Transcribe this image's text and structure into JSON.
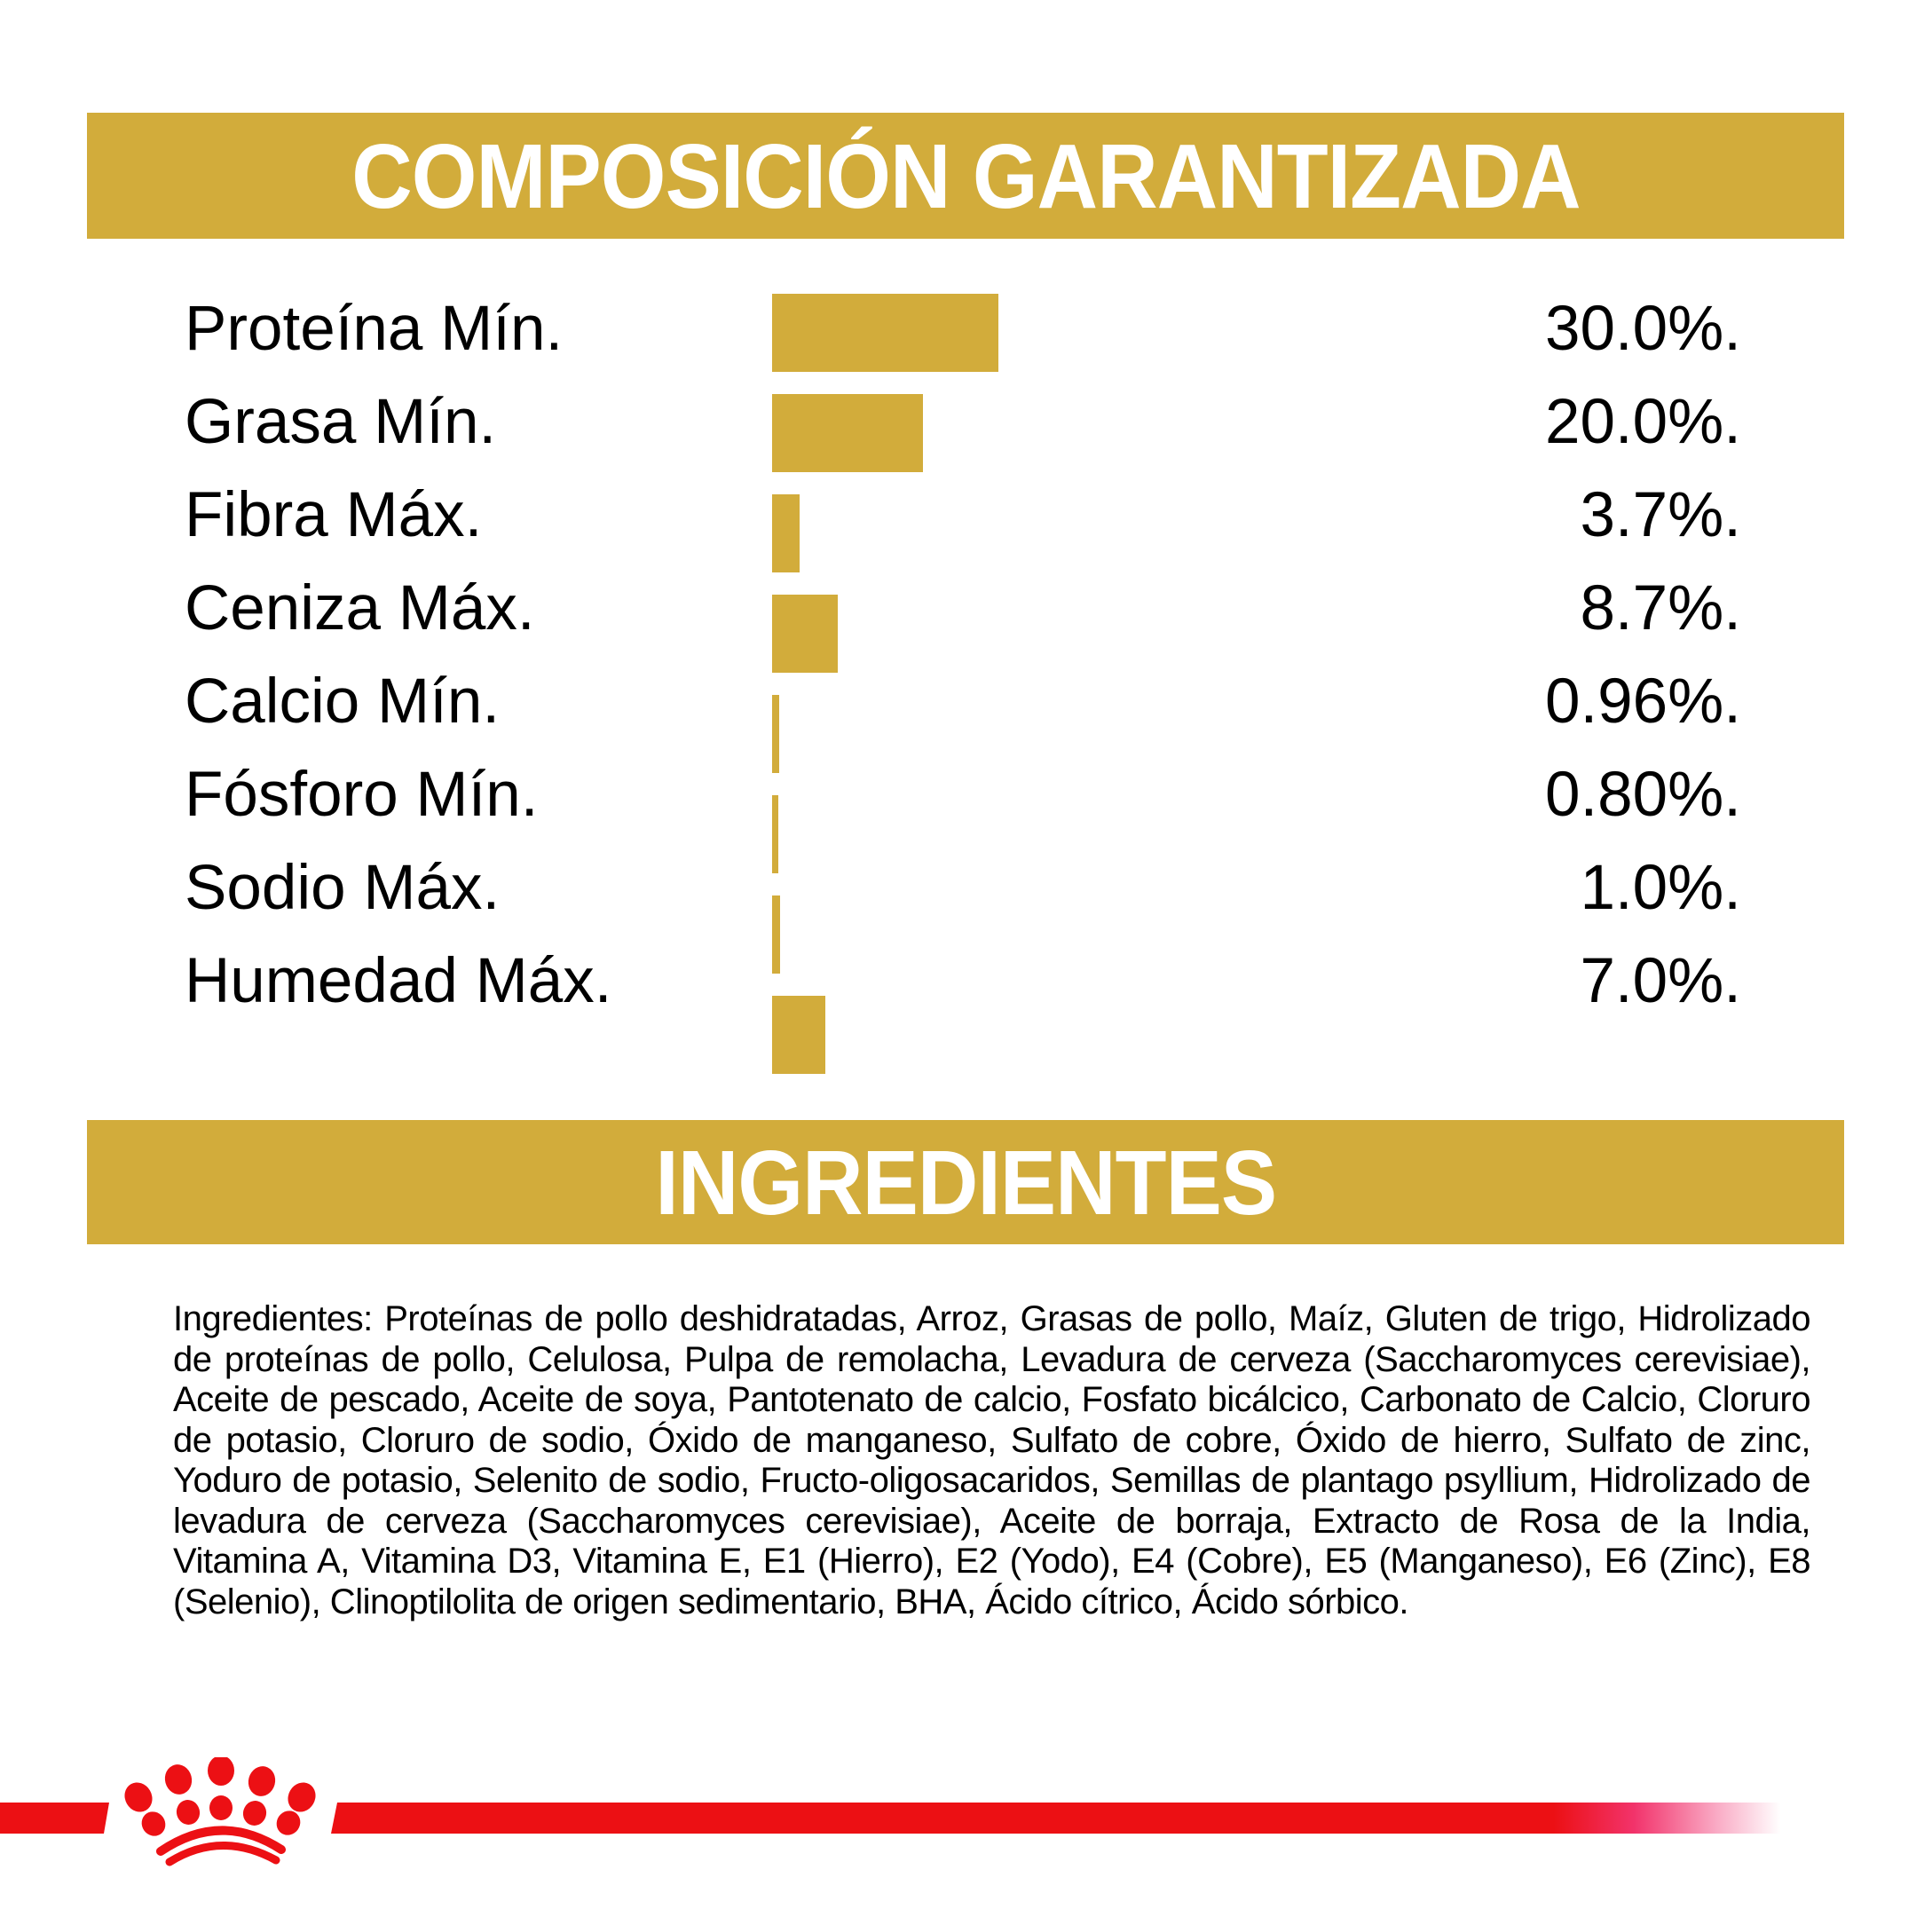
{
  "colors": {
    "gold": "#D2AC3B",
    "red": "#EC1014",
    "pink": "#F2336B",
    "light_pink": "#F9A8C3",
    "white": "#FFFFFF",
    "text": "#000000"
  },
  "header": {
    "title": "COMPOSICIÓN GARANTIZADA"
  },
  "chart_data": {
    "type": "bar",
    "orientation": "horizontal",
    "title": "COMPOSICIÓN GARANTIZADA",
    "categories": [
      "Proteína Mín.",
      "Grasa Mín.",
      "Fibra Máx.",
      "Ceniza Máx.",
      "Calcio Mín.",
      "Fósforo Mín.",
      "Sodio Máx.",
      "Humedad Máx."
    ],
    "values": [
      30.0,
      20.0,
      3.7,
      8.7,
      0.96,
      0.8,
      1.0,
      7.0
    ],
    "value_labels": [
      "30.0%.",
      "20.0%.",
      "3.7%.",
      "8.7%.",
      "0.96%.",
      "0.80%.",
      "1.0%.",
      "7.0%."
    ],
    "unit": "%",
    "bar_color": "#D2AC3B",
    "xlim": [
      0,
      30
    ],
    "grid": false,
    "legend": "none"
  },
  "ingredients": {
    "title": "INGREDIENTES",
    "body": "Ingredientes: Proteínas de pollo deshidratadas, Arroz, Grasas de pollo, Maíz, Gluten de trigo, Hidrolizado de proteínas de pollo, Celulosa, Pulpa de remolacha, Levadura de cerveza (Saccharomyces cerevisiae), Aceite de pescado, Aceite de soya, Pantotenato de calcio, Fosfato bicálcico, Carbonato de Calcio, Cloruro de potasio, Cloruro de sodio, Óxido de manganeso, Sulfato de cobre, Óxido de hierro, Sulfato de zinc, Yoduro de potasio, Selenito de sodio, Fructo-oligosacaridos, Semillas de plantago psyllium, Hidrolizado de levadura de cerveza (Saccharomyces cerevisiae), Aceite de borraja, Extracto de Rosa de la India, Vitamina A, Vitamina D3, Vitamina E, E1 (Hierro), E2 (Yodo), E4 (Cobre), E5 (Manganeso), E6 (Zinc), E8 (Selenio), Clinoptilolita de origen sedimentario, BHA, Ácido cítrico, Ácido sórbico."
  },
  "footer": {
    "brand_mark": "royal-canin-crown"
  }
}
